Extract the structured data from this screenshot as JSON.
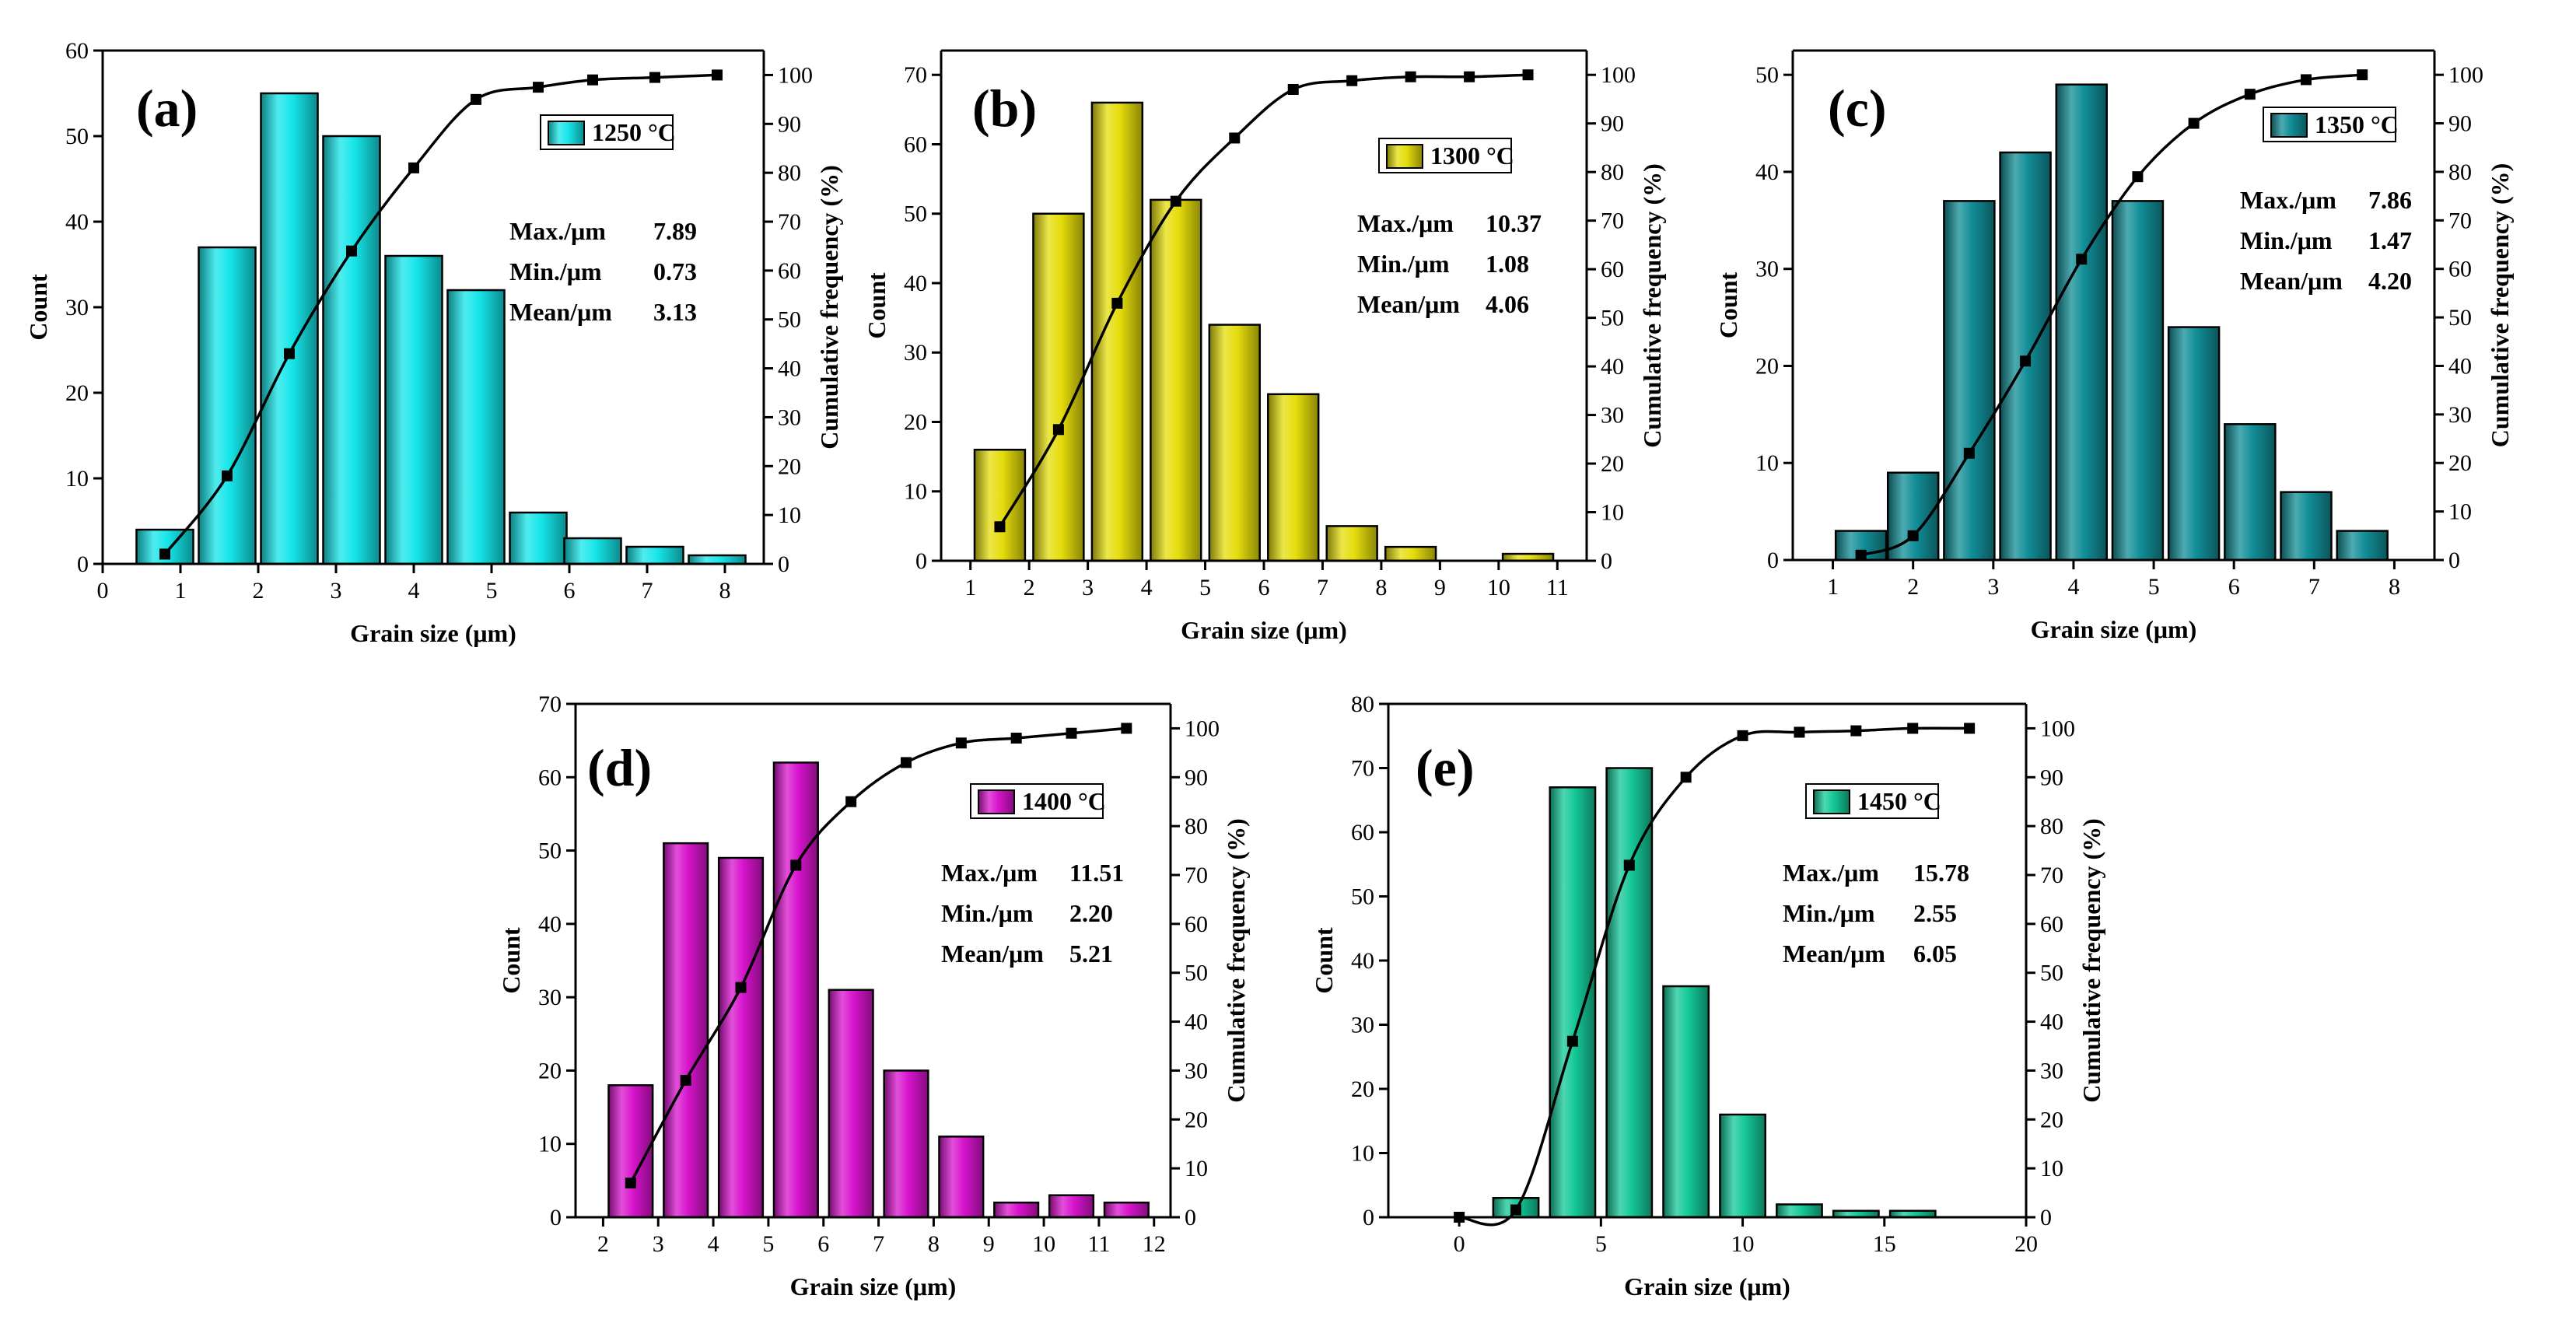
{
  "chart_data": [
    {
      "type": "bar",
      "panel_label": "(a)",
      "legend": "1250 °C",
      "color": "#16E6E9",
      "xlabel": "Grain size (μm)",
      "ylabel": "Count",
      "y2label": "Cumulative frequency (%)",
      "xlim": [
        0,
        8.5
      ],
      "ylim": [
        0,
        60
      ],
      "y2lim": [
        0,
        105
      ],
      "xticks": [
        0,
        1,
        2,
        3,
        4,
        5,
        6,
        7,
        8
      ],
      "yticks": [
        0,
        10,
        20,
        30,
        40,
        50,
        60
      ],
      "y2ticks": [
        0,
        10,
        20,
        30,
        40,
        50,
        60,
        70,
        80,
        90,
        100
      ],
      "bar_width": 0.73,
      "bins": [
        0.8,
        1.6,
        2.4,
        3.2,
        4.0,
        4.8,
        5.6,
        6.3,
        7.1,
        7.9
      ],
      "values": [
        4,
        37,
        55,
        50,
        36,
        32,
        6,
        3,
        2,
        1
      ],
      "cum_x": [
        0.8,
        1.6,
        2.4,
        3.2,
        4.0,
        4.8,
        5.6,
        6.3,
        7.1,
        7.9
      ],
      "cum_y": [
        2,
        18,
        43,
        64,
        81,
        95,
        97.5,
        99,
        99.5,
        100
      ],
      "stats": {
        "max_label": "Max./μm",
        "max": "7.89",
        "min_label": "Min./μm",
        "min": "0.73",
        "mean_label": "Mean/μm",
        "mean": "3.13"
      }
    },
    {
      "type": "bar",
      "panel_label": "(b)",
      "legend": "1300 °C",
      "color": "#E6DD0C",
      "xlabel": "Grain size (μm)",
      "ylabel": "Count",
      "y2label": "Cumulative frequency (%)",
      "xlim": [
        0.5,
        11.5
      ],
      "ylim": [
        0,
        73.5
      ],
      "y2lim": [
        0,
        105
      ],
      "xticks": [
        1,
        2,
        3,
        4,
        5,
        6,
        7,
        8,
        9,
        10,
        11
      ],
      "yticks": [
        0,
        10,
        20,
        30,
        40,
        50,
        60,
        70
      ],
      "y2ticks": [
        0,
        10,
        20,
        30,
        40,
        50,
        60,
        70,
        80,
        90,
        100
      ],
      "bar_width": 0.86,
      "bins": [
        1.5,
        2.5,
        3.5,
        4.5,
        5.5,
        6.5,
        7.5,
        8.5,
        9.5,
        10.5
      ],
      "values": [
        16,
        50,
        66,
        52,
        34,
        24,
        5,
        2,
        0,
        1
      ],
      "cum_x": [
        1.5,
        2.5,
        3.5,
        4.5,
        5.5,
        6.5,
        7.5,
        8.5,
        9.5,
        10.5
      ],
      "cum_y": [
        7,
        27,
        53,
        74,
        87,
        97,
        98.8,
        99.6,
        99.6,
        100
      ],
      "stats": {
        "max_label": "Max./μm",
        "max": "10.37",
        "min_label": "Min./μm",
        "min": "1.08",
        "mean_label": "Mean/μm",
        "mean": "4.06"
      }
    },
    {
      "type": "bar",
      "panel_label": "(c)",
      "legend": "1350 °C",
      "color": "#128E97",
      "xlabel": "Grain size (μm)",
      "ylabel": "Count",
      "y2label": "Cumulative frequency (%)",
      "xlim": [
        0.5,
        8.5
      ],
      "ylim": [
        0,
        52.5
      ],
      "y2lim": [
        0,
        105
      ],
      "xticks": [
        1,
        2,
        3,
        4,
        5,
        6,
        7,
        8
      ],
      "yticks": [
        0,
        10,
        20,
        30,
        40,
        50
      ],
      "y2ticks": [
        0,
        10,
        20,
        30,
        40,
        50,
        60,
        70,
        80,
        90,
        100
      ],
      "bar_width": 0.63,
      "bins": [
        1.35,
        2.0,
        2.7,
        3.4,
        4.1,
        4.8,
        5.5,
        6.2,
        6.9,
        7.6
      ],
      "values": [
        3,
        9,
        37,
        42,
        49,
        37,
        24,
        14,
        7,
        3
      ],
      "cum_x": [
        1.35,
        2.0,
        2.7,
        3.4,
        4.1,
        4.8,
        5.5,
        6.2,
        6.9,
        7.6
      ],
      "cum_y": [
        1,
        5,
        22,
        41,
        62,
        79,
        90,
        96,
        99,
        100
      ],
      "stats": {
        "max_label": "Max./μm",
        "max": "7.86",
        "min_label": "Min./μm",
        "min": "1.47",
        "mean_label": "Mean/μm",
        "mean": "4.20"
      }
    },
    {
      "type": "bar",
      "panel_label": "(d)",
      "legend": "1400 °C",
      "color": "#D814CD",
      "xlabel": "Grain size (μm)",
      "ylabel": "Count",
      "y2label": "Cumulative frequency (%)",
      "xlim": [
        1.5,
        12.3
      ],
      "ylim": [
        0,
        70
      ],
      "y2lim": [
        0,
        105
      ],
      "xticks": [
        2,
        3,
        4,
        5,
        6,
        7,
        8,
        9,
        10,
        11,
        12
      ],
      "yticks": [
        0,
        10,
        20,
        30,
        40,
        50,
        60,
        70
      ],
      "y2ticks": [
        0,
        10,
        20,
        30,
        40,
        50,
        60,
        70,
        80,
        90,
        100
      ],
      "bar_width": 0.8,
      "bins": [
        2.5,
        3.5,
        4.5,
        5.5,
        6.5,
        7.5,
        8.5,
        9.5,
        10.5,
        11.5
      ],
      "values": [
        18,
        51,
        49,
        62,
        31,
        20,
        11,
        2,
        3,
        2
      ],
      "cum_x": [
        2.5,
        3.5,
        4.5,
        5.5,
        6.5,
        7.5,
        8.5,
        9.5,
        10.5,
        11.5
      ],
      "cum_y": [
        7,
        28,
        47,
        72,
        85,
        93,
        97,
        98,
        99,
        100
      ],
      "stats": {
        "max_label": "Max./μm",
        "max": "11.51",
        "min_label": "Min./μm",
        "min": "2.20",
        "mean_label": "Mean/μm",
        "mean": "5.21"
      }
    },
    {
      "type": "bar",
      "panel_label": "(e)",
      "legend": "1450 °C",
      "color": "#14C898",
      "xlabel": "Grain size (μm)",
      "ylabel": "Count",
      "y2label": "Cumulative frequency (%)",
      "xlim": [
        -2.5,
        20
      ],
      "ylim": [
        0,
        80
      ],
      "y2lim": [
        0,
        105
      ],
      "xticks": [
        0,
        5,
        10,
        15,
        20
      ],
      "yticks": [
        0,
        10,
        20,
        30,
        40,
        50,
        60,
        70,
        80
      ],
      "y2ticks": [
        0,
        10,
        20,
        30,
        40,
        50,
        60,
        70,
        80,
        90,
        100
      ],
      "bar_width": 1.6,
      "bins": [
        0,
        2,
        4,
        6,
        8,
        10,
        12,
        14,
        16
      ],
      "values": [
        0,
        3,
        67,
        70,
        36,
        16,
        2,
        1,
        1
      ],
      "cum_x": [
        0,
        2,
        4,
        6,
        8,
        10,
        12,
        14,
        16,
        18
      ],
      "cum_y": [
        0,
        1.5,
        36,
        72,
        90,
        98.5,
        99.2,
        99.5,
        100,
        100
      ],
      "stats": {
        "max_label": "Max./μm",
        "max": "15.78",
        "min_label": "Min./μm",
        "min": "2.55",
        "mean_label": "Mean/μm",
        "mean": "6.05"
      }
    }
  ]
}
